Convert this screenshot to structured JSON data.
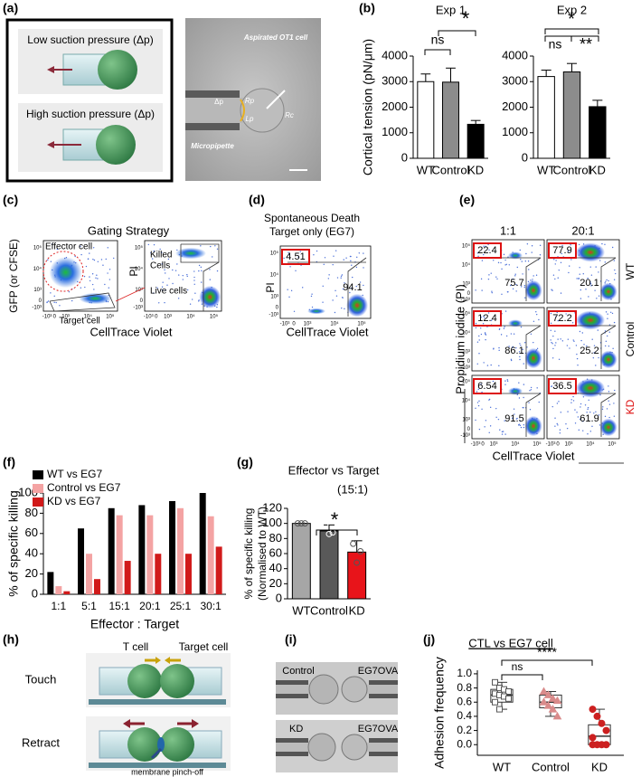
{
  "panel_labels": [
    "(a)",
    "(b)",
    "(c)",
    "(d)",
    "(e)",
    "(f)",
    "(g)",
    "(h)",
    "(i)",
    "(j)"
  ],
  "a": {
    "low": "Low suction pressure (Δp)",
    "high": "High suction pressure (Δp)",
    "cell": "Aspirated OT1 cell",
    "pipette": "Micropipette",
    "dp": "Δp",
    "rp": "Rp",
    "lp": "Lp",
    "rc": "Rc"
  },
  "c": {
    "title": "Gating Strategy",
    "ylabel": "GFP (or CFSE)",
    "xlabel": "CellTrace Violet",
    "pi": "PI",
    "effector": "Effector cell",
    "target": "Target cell",
    "killed": [
      "Killed",
      "Cells"
    ],
    "live": "Live cells"
  },
  "d": {
    "title": [
      "Spontaneous Death",
      "Target only (EG7)"
    ],
    "dead": 4.51,
    "live": 94.1,
    "ylabel": "PI",
    "xlabel": "CellTrace Violet"
  },
  "e": {
    "columns": [
      "1:1",
      "20:1"
    ],
    "rows": [
      "WT",
      "Control",
      "KD"
    ],
    "ylabel": "Propidium iodide (PI)",
    "xlabel": "CellTrace Violet",
    "gates": [
      [
        [
          22.4,
          75.7
        ],
        [
          77.9,
          20.1
        ]
      ],
      [
        [
          12.4,
          86.1
        ],
        [
          72.2,
          25.2
        ]
      ],
      [
        [
          6.54,
          91.5
        ],
        [
          36.5,
          61.9
        ]
      ]
    ]
  },
  "flow_ticks": [
    "-10³",
    "0",
    "10³",
    "10⁴",
    "10⁵"
  ],
  "h": {
    "touch": "Touch",
    "retract": "Retract",
    "tcell": "T cell",
    "target": "Target cell",
    "pinch": "membrane pinch-off"
  },
  "i": {
    "top": [
      "Control",
      "EG7OVA"
    ],
    "bottom": [
      "KD",
      "EG7OVA"
    ]
  },
  "chart_data": [
    {
      "type": "bar",
      "title": "Exp 1",
      "ylabel": "Cortical tension (pN/μm)",
      "categories": [
        "WT",
        "Control",
        "KD"
      ],
      "values": [
        3000,
        2980,
        1330
      ],
      "errors": [
        300,
        550,
        150
      ],
      "colors": [
        "#ffffff",
        "#8c8c8c",
        "#000000"
      ],
      "ylim": [
        0,
        4000
      ],
      "yticks": [
        0,
        1000,
        2000,
        3000,
        4000
      ],
      "annotations": [
        "ns",
        "*"
      ]
    },
    {
      "type": "bar",
      "title": "Exp 2",
      "categories": [
        "WT",
        "Control",
        "KD"
      ],
      "values": [
        3200,
        3380,
        2020
      ],
      "errors": [
        250,
        330,
        250
      ],
      "colors": [
        "#ffffff",
        "#8c8c8c",
        "#000000"
      ],
      "ylim": [
        0,
        4000
      ],
      "yticks": [
        0,
        1000,
        2000,
        3000,
        4000
      ],
      "annotations": [
        "ns",
        "**",
        "*"
      ]
    },
    {
      "type": "bar",
      "ylabel": "% of specific killing",
      "xlabel": "Effector : Target",
      "categories": [
        "1:1",
        "5:1",
        "15:1",
        "20:1",
        "25:1",
        "30:1"
      ],
      "series": [
        {
          "name": "WT vs EG7",
          "color": "#000000",
          "values": [
            22,
            65,
            85,
            88,
            92,
            100
          ]
        },
        {
          "name": "Control vs EG7",
          "color": "#f4a3a3",
          "values": [
            8,
            40,
            78,
            78,
            85,
            77
          ]
        },
        {
          "name": "KD vs EG7",
          "color": "#d11a1a",
          "values": [
            3,
            15,
            33,
            40,
            40,
            47
          ]
        }
      ],
      "ylim": [
        0,
        100
      ],
      "yticks": [
        0,
        20,
        40,
        60,
        80,
        100
      ]
    },
    {
      "type": "bar",
      "title": "Effector vs Target",
      "subtitle": "(15:1)",
      "ylabel": [
        "% of specific killing",
        "(Normalised to WT)"
      ],
      "categories": [
        "WT",
        "Control",
        "KD"
      ],
      "values": [
        100,
        90,
        62
      ],
      "errors": [
        0,
        8,
        15
      ],
      "colors": [
        "#a6a6a6",
        "#595959",
        "#e8141a"
      ],
      "points": [
        [
          100,
          100,
          100
        ],
        [
          97,
          86,
          88
        ],
        [
          73,
          48,
          63
        ]
      ],
      "ylim": [
        0,
        120
      ],
      "yticks": [
        0,
        20,
        40,
        60,
        80,
        100,
        120
      ],
      "annotations": [
        "*"
      ]
    },
    {
      "type": "box",
      "title": "CTL  vs  EG7 cell",
      "ylabel": "Adhesion frequency",
      "categories": [
        "WT",
        "Control",
        "KD"
      ],
      "colors": [
        "#ffffff",
        "#d98b8b",
        "#cc2020"
      ],
      "boxes": [
        {
          "whislo": 0.5,
          "q1": 0.6,
          "med": 0.7,
          "q3": 0.78,
          "whishi": 0.88
        },
        {
          "whislo": 0.4,
          "q1": 0.52,
          "med": 0.6,
          "q3": 0.7,
          "whishi": 0.75
        },
        {
          "whislo": 0,
          "q1": 0,
          "med": 0.12,
          "q3": 0.28,
          "whishi": 0.5
        }
      ],
      "points": [
        [
          0.88,
          0.8,
          0.78,
          0.75,
          0.72,
          0.7,
          0.68,
          0.65,
          0.6,
          0.5
        ],
        [
          0.75,
          0.7,
          0.65,
          0.62,
          0.6,
          0.55,
          0.5,
          0.4
        ],
        [
          0.5,
          0.4,
          0.3,
          0.2,
          0.1,
          0,
          0,
          0,
          0
        ]
      ],
      "ylim": [
        -0.15,
        1.05
      ],
      "yticks": [
        {
          "value": 0,
          "label": "0.0"
        },
        0.2,
        0.4,
        0.6,
        0.8,
        {
          "value": 1,
          "label": "1.0"
        }
      ],
      "annotations": [
        "ns",
        "****"
      ]
    }
  ]
}
